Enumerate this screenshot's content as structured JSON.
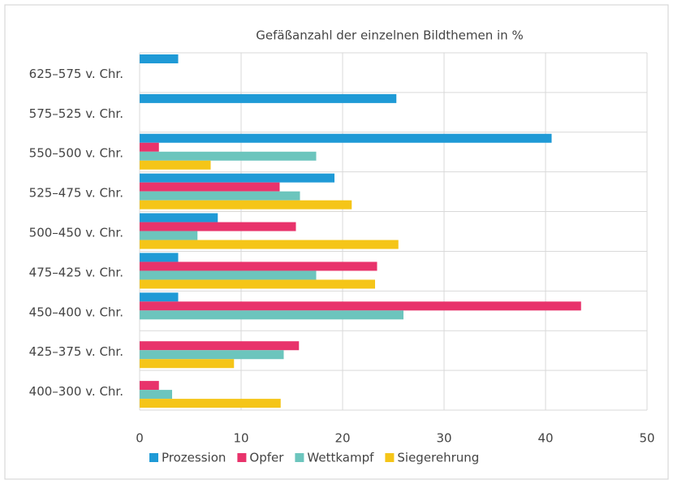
{
  "chart_data": {
    "type": "barh",
    "title": "Gefäßanzahl der einzelnen Bildthemen in %",
    "categories": [
      "625–575 v. Chr.",
      "575–525 v. Chr.",
      "550–500 v. Chr.",
      "525–475 v. Chr.",
      "500–450 v. Chr.",
      "475–425 v. Chr.",
      "450–400 v. Chr.",
      "425–375 v. Chr.",
      "400–300 v. Chr."
    ],
    "series": [
      {
        "name": "Prozession",
        "color": "#1f9ad6",
        "values": [
          3.8,
          25.3,
          40.6,
          19.2,
          7.7,
          3.8,
          3.8,
          null,
          null
        ]
      },
      {
        "name": "Opfer",
        "color": "#e8336b",
        "values": [
          null,
          null,
          1.9,
          13.8,
          15.4,
          23.4,
          43.5,
          15.7,
          1.9
        ]
      },
      {
        "name": "Wettkampf",
        "color": "#6cc5bd",
        "values": [
          null,
          null,
          17.4,
          15.8,
          5.7,
          17.4,
          26.0,
          14.2,
          3.2
        ]
      },
      {
        "name": "Siegerehrung",
        "color": "#f5c518",
        "values": [
          null,
          null,
          7.0,
          20.9,
          25.5,
          23.2,
          null,
          9.3,
          13.9
        ]
      }
    ],
    "xlim": [
      0,
      50
    ],
    "xticks": [
      0,
      10,
      20,
      30,
      40,
      50
    ],
    "grid": true,
    "legend": "bottom"
  }
}
